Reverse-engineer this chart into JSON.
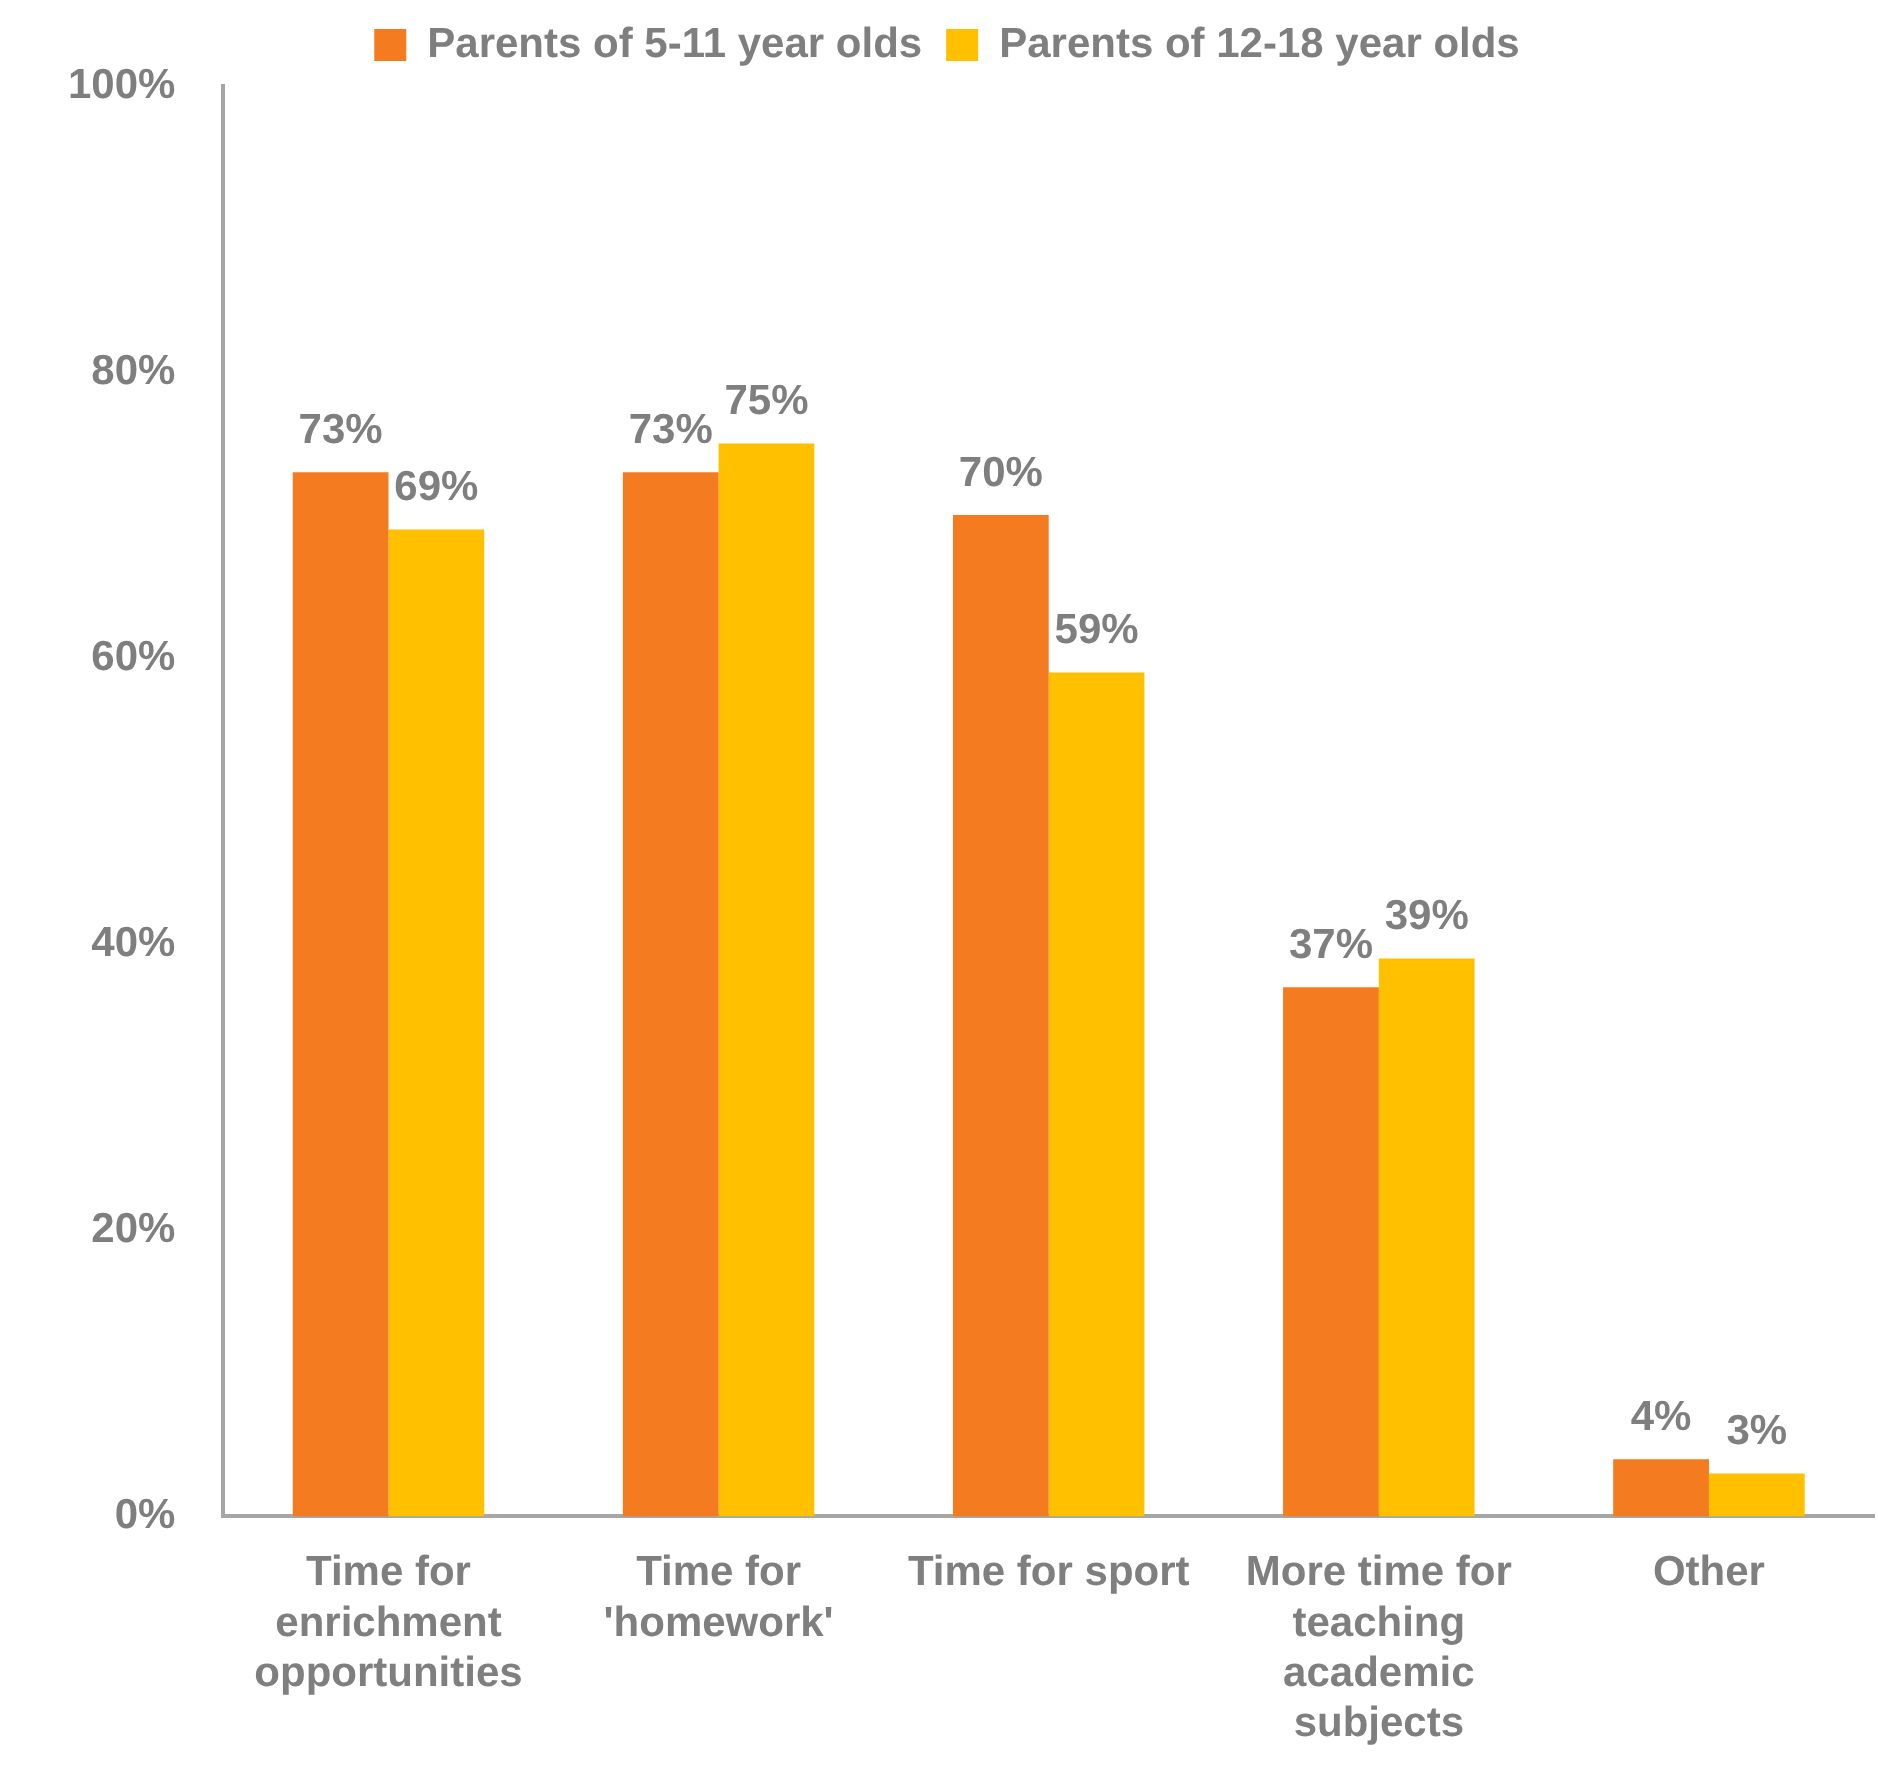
{
  "chart_data": {
    "type": "bar",
    "categories": [
      "Time for enrichment opportunities",
      "Time for 'homework'",
      "Time for sport",
      "More time for teaching academic subjects",
      "Other"
    ],
    "series": [
      {
        "name": "Parents of 5-11 year olds",
        "color": "#f47b20",
        "values": [
          73,
          73,
          70,
          37,
          4
        ],
        "value_labels": [
          "73%",
          "73%",
          "70%",
          "37%",
          "4%"
        ]
      },
      {
        "name": "Parents of 12-18 year olds",
        "color": "#ffc000",
        "values": [
          69,
          75,
          59,
          39,
          3
        ],
        "value_labels": [
          "69%",
          "75%",
          "59%",
          "39%",
          "3%"
        ]
      }
    ],
    "ylim": [
      0,
      100
    ],
    "yticks": [
      {
        "value": 0,
        "label": "0%"
      },
      {
        "value": 20,
        "label": "20%"
      },
      {
        "value": 40,
        "label": "40%"
      },
      {
        "value": 60,
        "label": "60%"
      },
      {
        "value": 80,
        "label": "80%"
      },
      {
        "value": 100,
        "label": "100%"
      }
    ],
    "grid": false,
    "legend": "top"
  }
}
